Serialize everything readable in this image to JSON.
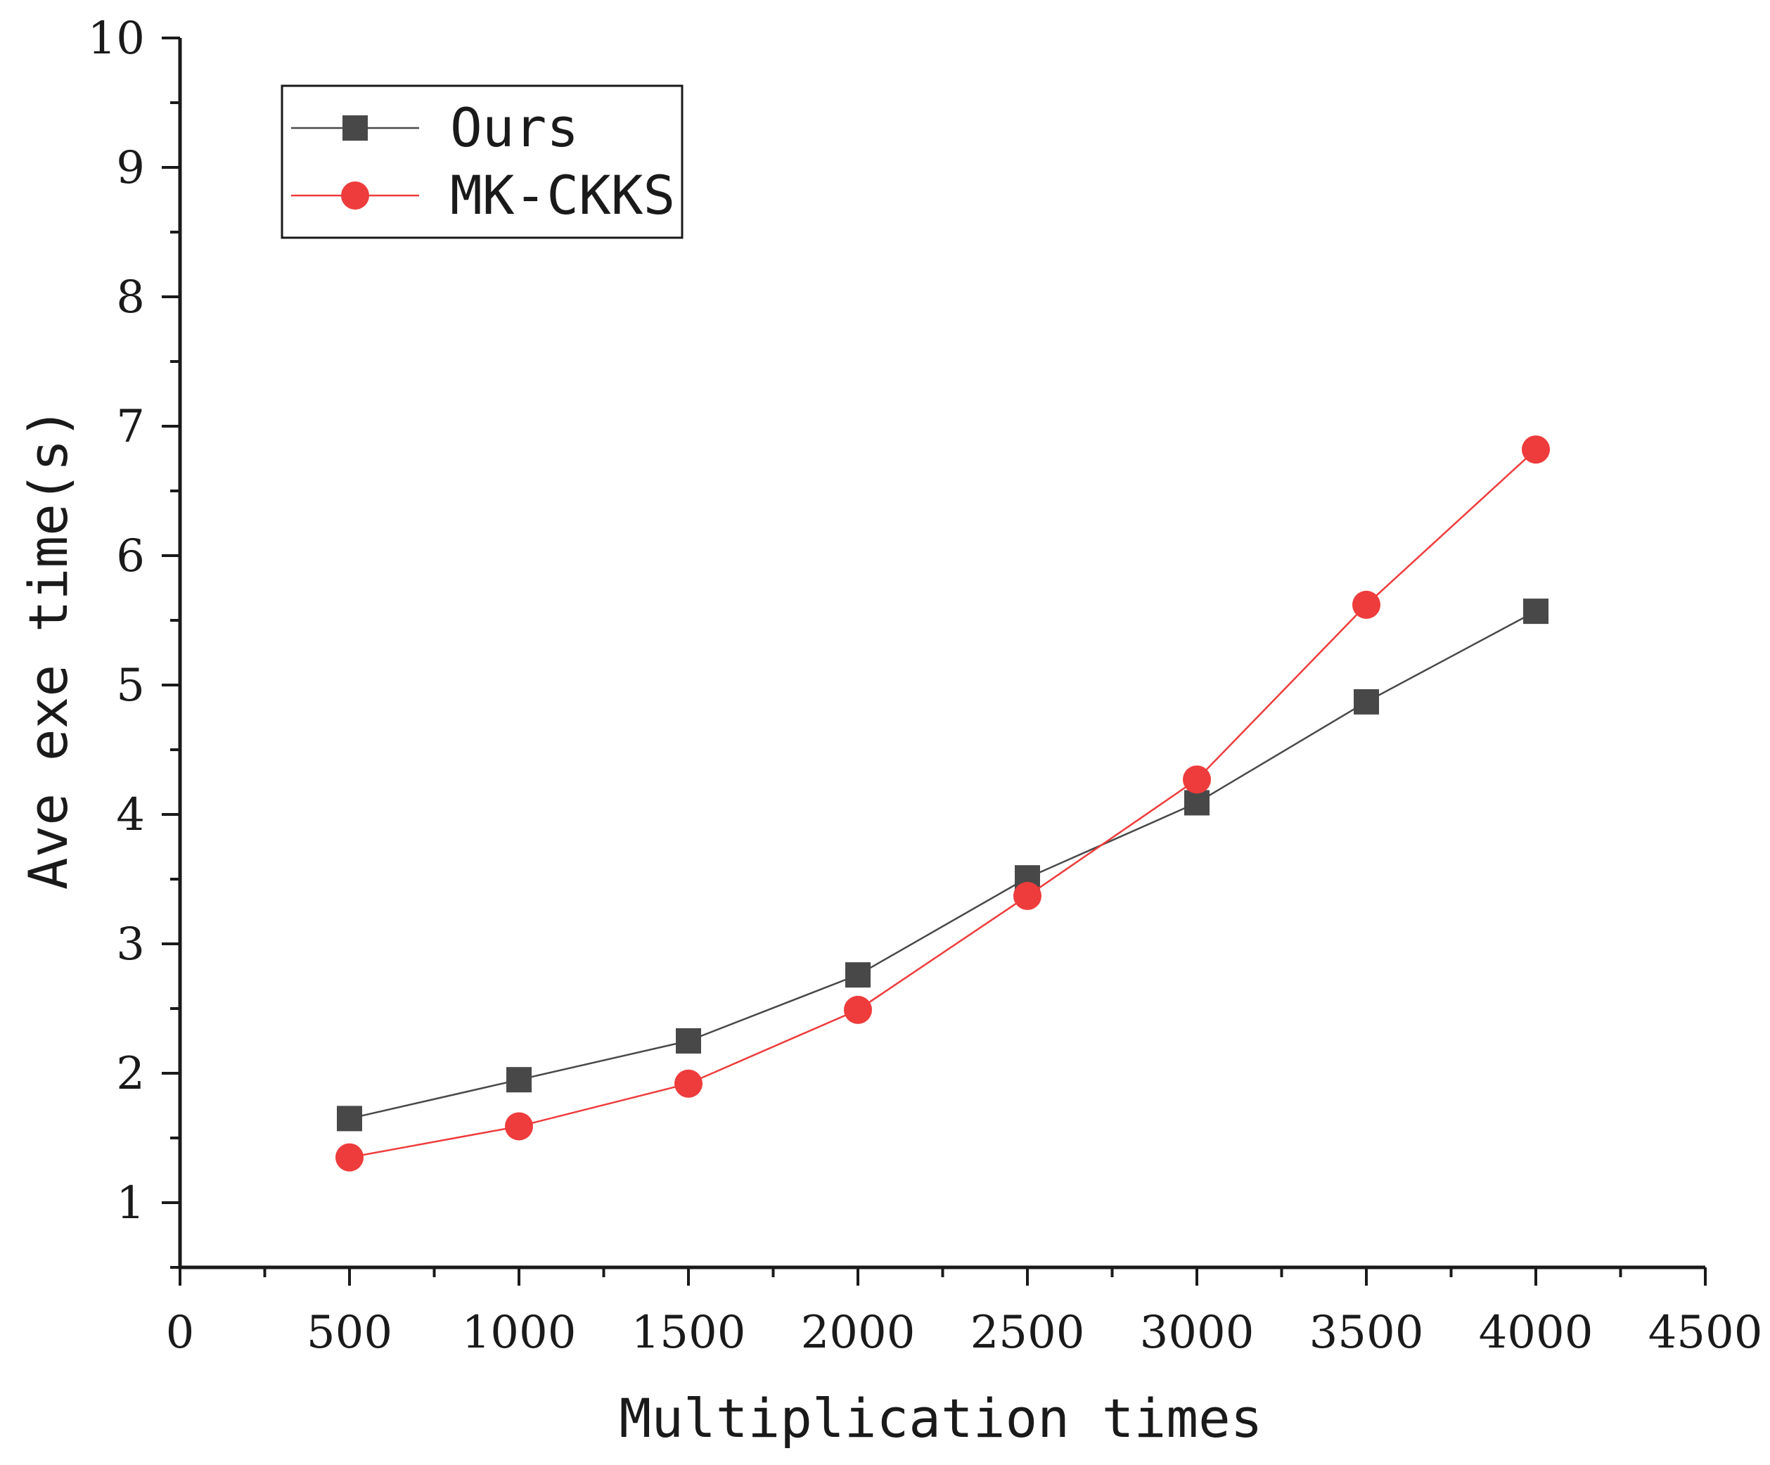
{
  "chart_data": {
    "type": "line",
    "title": "",
    "xlabel": "Multiplication times",
    "ylabel": "Ave exe time(s)",
    "xlim": [
      0,
      4500
    ],
    "ylim": [
      0.5,
      10
    ],
    "x_ticks": [
      0,
      500,
      1000,
      1500,
      2000,
      2500,
      3000,
      3500,
      4000,
      4500
    ],
    "x_tick_labels": [
      "0",
      "500",
      "1000",
      "1500",
      "2000",
      "2500",
      "3000",
      "3500",
      "4000",
      "4500"
    ],
    "y_ticks": [
      1,
      2,
      3,
      4,
      5,
      6,
      7,
      8,
      9,
      10
    ],
    "y_tick_labels": [
      "1",
      "2",
      "3",
      "4",
      "5",
      "6",
      "7",
      "8",
      "9",
      "10"
    ],
    "grid": false,
    "legend_position": "top-left",
    "x": [
      500,
      1000,
      1500,
      2000,
      2500,
      3000,
      3500,
      4000
    ],
    "series": [
      {
        "name": "Ours",
        "marker": "square",
        "color": "#484848",
        "values": [
          1.65,
          1.95,
          2.25,
          2.76,
          3.51,
          4.09,
          4.87,
          5.57
        ]
      },
      {
        "name": "MK-CKKS",
        "marker": "circle",
        "color": "#ee3b3b",
        "values": [
          1.35,
          1.59,
          1.92,
          2.49,
          3.37,
          4.27,
          5.62,
          6.82
        ]
      }
    ]
  }
}
